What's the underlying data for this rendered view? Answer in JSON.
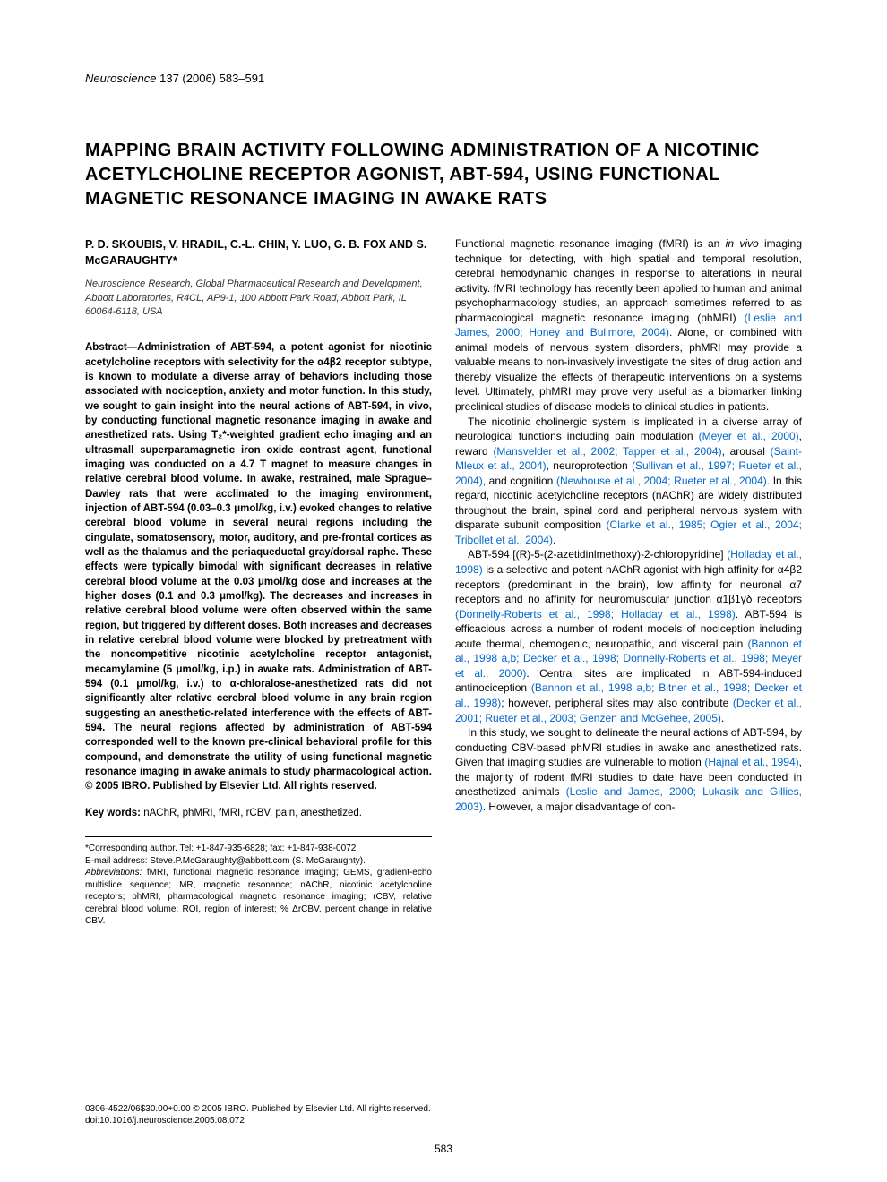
{
  "journal": {
    "name": "Neuroscience",
    "citation": "137 (2006) 583–591"
  },
  "title": "MAPPING BRAIN ACTIVITY FOLLOWING ADMINISTRATION OF A NICOTINIC ACETYLCHOLINE RECEPTOR AGONIST, ABT-594, USING FUNCTIONAL MAGNETIC RESONANCE IMAGING IN AWAKE RATS",
  "authors": "P. D. SKOUBIS, V. HRADIL, C.-L. CHIN, Y. LUO, G. B. FOX AND S. McGARAUGHTY*",
  "affiliation": "Neuroscience Research, Global Pharmaceutical Research and Development, Abbott Laboratories, R4CL, AP9-1, 100 Abbott Park Road, Abbott Park, IL 60064-6118, USA",
  "abstract": "Abstract—Administration of ABT-594, a potent agonist for nicotinic acetylcholine receptors with selectivity for the α4β2 receptor subtype, is known to modulate a diverse array of behaviors including those associated with nociception, anxiety and motor function. In this study, we sought to gain insight into the neural actions of ABT-594, in vivo, by conducting functional magnetic resonance imaging in awake and anesthetized rats. Using T₂*-weighted gradient echo imaging and an ultrasmall superparamagnetic iron oxide contrast agent, functional imaging was conducted on a 4.7 T magnet to measure changes in relative cerebral blood volume. In awake, restrained, male Sprague–Dawley rats that were acclimated to the imaging environment, injection of ABT-594 (0.03–0.3 μmol/kg, i.v.) evoked changes to relative cerebral blood volume in several neural regions including the cingulate, somatosensory, motor, auditory, and pre-frontal cortices as well as the thalamus and the periaqueductal gray/dorsal raphe. These effects were typically bimodal with significant decreases in relative cerebral blood volume at the 0.03 μmol/kg dose and increases at the higher doses (0.1 and 0.3 μmol/kg). The decreases and increases in relative cerebral blood volume were often observed within the same region, but triggered by different doses. Both increases and decreases in relative cerebral blood volume were blocked by pretreatment with the noncompetitive nicotinic acetylcholine receptor antagonist, mecamylamine (5 μmol/kg, i.p.) in awake rats. Administration of ABT-594 (0.1 μmol/kg, i.v.) to α-chloralose-anesthetized rats did not significantly alter relative cerebral blood volume in any brain region suggesting an anesthetic-related interference with the effects of ABT-594. The neural regions affected by administration of ABT-594 corresponded well to the known pre-clinical behavioral profile for this compound, and demonstrate the utility of using functional magnetic resonance imaging in awake animals to study pharmacological action. © 2005 IBRO. Published by Elsevier Ltd. All rights reserved.",
  "keywords": {
    "label": "Key words:",
    "value": "nAChR, phMRI, fMRI, rCBV, pain, anesthetized."
  },
  "footnote": {
    "corresponding": "*Corresponding author. Tel: +1-847-935-6828; fax: +1-847-938-0072.",
    "email_label": "E-mail address:",
    "email": "Steve.P.McGaraughty@abbott.com (S. McGaraughty).",
    "abbrev_label": "Abbreviations:",
    "abbrev": "fMRI, functional magnetic resonance imaging; GEMS, gradient-echo multislice sequence; MR, magnetic resonance; nAChR, nicotinic acetylcholine receptors; phMRI, pharmacological magnetic resonance imaging; rCBV, relative cerebral blood volume; ROI, region of interest; % ΔrCBV, percent change in relative CBV."
  },
  "body": {
    "p1_a": "Functional magnetic resonance imaging (fMRI) is an ",
    "p1_invivo": "in vivo",
    "p1_b": " imaging technique for detecting, with high spatial and temporal resolution, cerebral hemodynamic changes in response to alterations in neural activity. fMRI technology has recently been applied to human and animal psychopharmacology studies, an approach sometimes referred to as pharmacological magnetic resonance imaging (phMRI) ",
    "p1_ref1": "(Leslie and James, 2000; Honey and Bullmore, 2004)",
    "p1_c": ". Alone, or combined with animal models of nervous system disorders, phMRI may provide a valuable means to non-invasively investigate the sites of drug action and thereby visualize the effects of therapeutic interventions on a systems level. Ultimately, phMRI may prove very useful as a biomarker linking preclinical studies of disease models to clinical studies in patients.",
    "p2_a": "The nicotinic cholinergic system is implicated in a diverse array of neurological functions including pain modulation ",
    "p2_ref1": "(Meyer et al., 2000)",
    "p2_b": ", reward ",
    "p2_ref2": "(Mansvelder et al., 2002; Tapper et al., 2004)",
    "p2_c": ", arousal ",
    "p2_ref3": "(Saint-Mleux et al., 2004)",
    "p2_d": ", neuroprotection ",
    "p2_ref4": "(Sullivan et al., 1997; Rueter et al., 2004)",
    "p2_e": ", and cognition ",
    "p2_ref5": "(Newhouse et al., 2004; Rueter et al., 2004)",
    "p2_f": ". In this regard, nicotinic acetylcholine receptors (nAChR) are widely distributed throughout the brain, spinal cord and peripheral nervous system with disparate subunit composition ",
    "p2_ref6": "(Clarke et al., 1985; Ogier et al., 2004; Tribollet et al., 2004)",
    "p2_g": ".",
    "p3_a": "ABT-594 [(R)-5-(2-azetidinlmethoxy)-2-chloropyridine] ",
    "p3_ref1": "(Holladay et al., 1998)",
    "p3_b": " is a selective and potent nAChR agonist with high affinity for α4β2 receptors (predominant in the brain), low affinity for neuronal α7 receptors and no affinity for neuromuscular junction α1β1γδ receptors ",
    "p3_ref2": "(Donnelly-Roberts et al., 1998; Holladay et al., 1998)",
    "p3_c": ". ABT-594 is efficacious across a number of rodent models of nociception including acute thermal, chemogenic, neuropathic, and visceral pain ",
    "p3_ref3": "(Bannon et al., 1998 a,b; Decker et al., 1998; Donnelly-Roberts et al., 1998; Meyer et al., 2000)",
    "p3_d": ". Central sites are implicated in ABT-594-induced antinociception ",
    "p3_ref4": "(Bannon et al., 1998 a,b; Bitner et al., 1998; Decker et al., 1998)",
    "p3_e": "; however, peripheral sites may also contribute ",
    "p3_ref5": "(Decker et al., 2001; Rueter et al., 2003; Genzen and McGehee, 2005)",
    "p3_f": ".",
    "p4_a": "In this study, we sought to delineate the neural actions of ABT-594, by conducting CBV-based phMRI studies in awake and anesthetized rats. Given that imaging studies are vulnerable to motion ",
    "p4_ref1": "(Hajnal et al., 1994)",
    "p4_b": ", the majority of rodent fMRI studies to date have been conducted in anesthetized animals ",
    "p4_ref2": "(Leslie and James, 2000; Lukasik and Gillies, 2003)",
    "p4_c": ". However, a major disadvantage of con-"
  },
  "copyright": {
    "line1": "0306-4522/06$30.00+0.00 © 2005 IBRO. Published by Elsevier Ltd. All rights reserved.",
    "line2": "doi:10.1016/j.neuroscience.2005.08.072"
  },
  "page_number": "583",
  "colors": {
    "text": "#000000",
    "link": "#0066cc",
    "background": "#ffffff",
    "affil": "#333333"
  },
  "typography": {
    "title_fontsize": 20,
    "body_fontsize": 12,
    "abstract_fontsize": 11.5,
    "footnote_fontsize": 10
  }
}
